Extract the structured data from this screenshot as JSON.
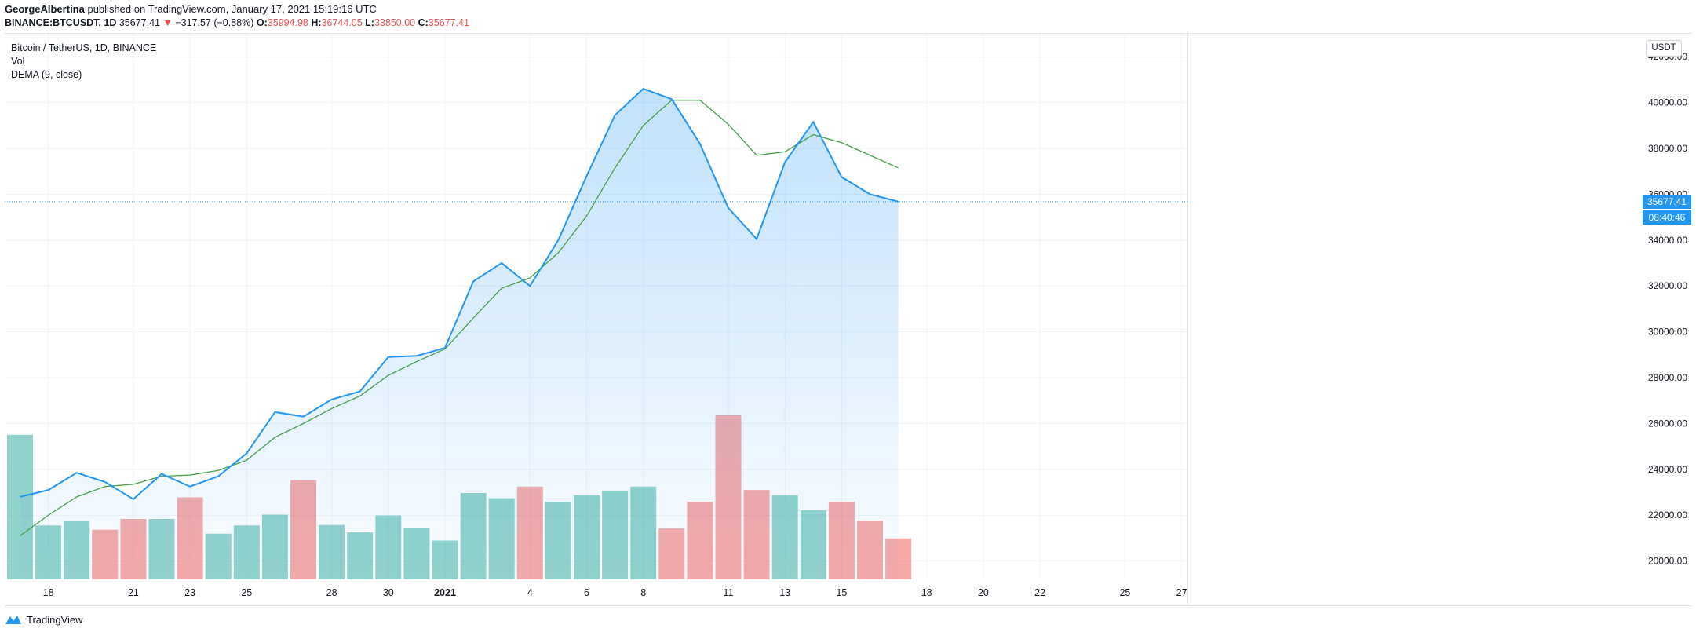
{
  "header": {
    "author": "GeorgeAlbertina",
    "published_text": " published on TradingView.com, January 17, 2021 15:19:16 UTC",
    "symbol": "BINANCE:BTCUSDT, 1D",
    "last": " 35677.41",
    "change": " −317.57 (−0.88%)",
    "o_label": " O:",
    "o_value": "35994.98",
    "h_label": " H:",
    "h_value": "36744.05",
    "l_label": " L:",
    "l_value": "33850.00",
    "c_label": " C:",
    "c_value": "35677.41"
  },
  "legend": {
    "title": "Bitcoin / TetherUS, 1D, BINANCE",
    "vol": "Vol",
    "dema": "DEMA (9, close)"
  },
  "axis": {
    "currency_button": "USDT",
    "last_price_label": "35677.41",
    "countdown_label": "08:40:46"
  },
  "footer": {
    "brand": "TradingView"
  },
  "colors": {
    "price_line": "#2196f3",
    "dema_line": "#43a047",
    "vol_up": "#26a69a",
    "vol_down": "#ef5350",
    "down_arrow": "#ef5350"
  },
  "chart_data": {
    "type": "line",
    "title": "Bitcoin / TetherUS, 1D, BINANCE",
    "dates": [
      "2020-12-17",
      "2020-12-18",
      "2020-12-19",
      "2020-12-20",
      "2020-12-21",
      "2020-12-22",
      "2020-12-23",
      "2020-12-24",
      "2020-12-25",
      "2020-12-26",
      "2020-12-27",
      "2020-12-28",
      "2020-12-29",
      "2020-12-30",
      "2020-12-31",
      "2021-01-01",
      "2021-01-02",
      "2021-01-03",
      "2021-01-04",
      "2021-01-05",
      "2021-01-06",
      "2021-01-07",
      "2021-01-08",
      "2021-01-09",
      "2021-01-10",
      "2021-01-11",
      "2021-01-12",
      "2021-01-13",
      "2021-01-14",
      "2021-01-15",
      "2021-01-16",
      "2021-01-17"
    ],
    "x_ticks": [
      "18",
      "21",
      "23",
      "25",
      "28",
      "30",
      "2021",
      "4",
      "6",
      "8",
      "11",
      "13",
      "15",
      "18",
      "20",
      "22",
      "25",
      "27"
    ],
    "x_tick_positions": [
      1,
      4,
      6,
      8,
      11,
      13,
      15,
      18,
      20,
      22,
      25,
      27,
      29,
      32,
      34,
      36,
      39,
      41
    ],
    "y_ticks": [
      20000,
      22000,
      24000,
      26000,
      28000,
      30000,
      32000,
      34000,
      36000,
      38000,
      40000,
      42000
    ],
    "ylim": [
      19200,
      43000
    ],
    "series": [
      {
        "name": "Bitcoin / TetherUS",
        "values": [
          22800,
          23100,
          23850,
          23450,
          22700,
          23800,
          23250,
          23700,
          24700,
          26500,
          26300,
          27050,
          27400,
          28900,
          28950,
          29300,
          32200,
          33000,
          32000,
          34000,
          36800,
          39450,
          40600,
          40150,
          38200,
          35400,
          34050,
          37400,
          39150,
          36750,
          36000,
          35677.41
        ]
      },
      {
        "name": "DEMA (9, close)",
        "values": [
          21100,
          22000,
          22800,
          23250,
          23350,
          23700,
          23750,
          23950,
          24400,
          25400,
          26000,
          26650,
          27200,
          28100,
          28700,
          29250,
          30600,
          31900,
          32350,
          33450,
          35050,
          37150,
          39000,
          40100,
          40100,
          39050,
          37700,
          37850,
          38600,
          38250,
          37700,
          37150
        ]
      }
    ],
    "volume": {
      "name": "Vol",
      "values": [
        3.35,
        1.25,
        1.35,
        1.15,
        1.4,
        1.4,
        1.9,
        1.06,
        1.25,
        1.5,
        2.3,
        1.26,
        1.09,
        1.48,
        1.2,
        0.9,
        2.0,
        1.88,
        2.15,
        1.8,
        1.95,
        2.05,
        2.15,
        1.18,
        1.8,
        3.8,
        2.07,
        1.95,
        1.6,
        1.8,
        1.36,
        0.95
      ],
      "direction": [
        "up",
        "up",
        "up",
        "down",
        "down",
        "up",
        "down",
        "up",
        "up",
        "up",
        "down",
        "up",
        "up",
        "up",
        "up",
        "up",
        "up",
        "up",
        "down",
        "up",
        "up",
        "up",
        "up",
        "down",
        "down",
        "down",
        "down",
        "up",
        "up",
        "down",
        "down",
        "down"
      ]
    },
    "last_price": 35677.41,
    "grid": true,
    "legend_position": "top-left"
  }
}
